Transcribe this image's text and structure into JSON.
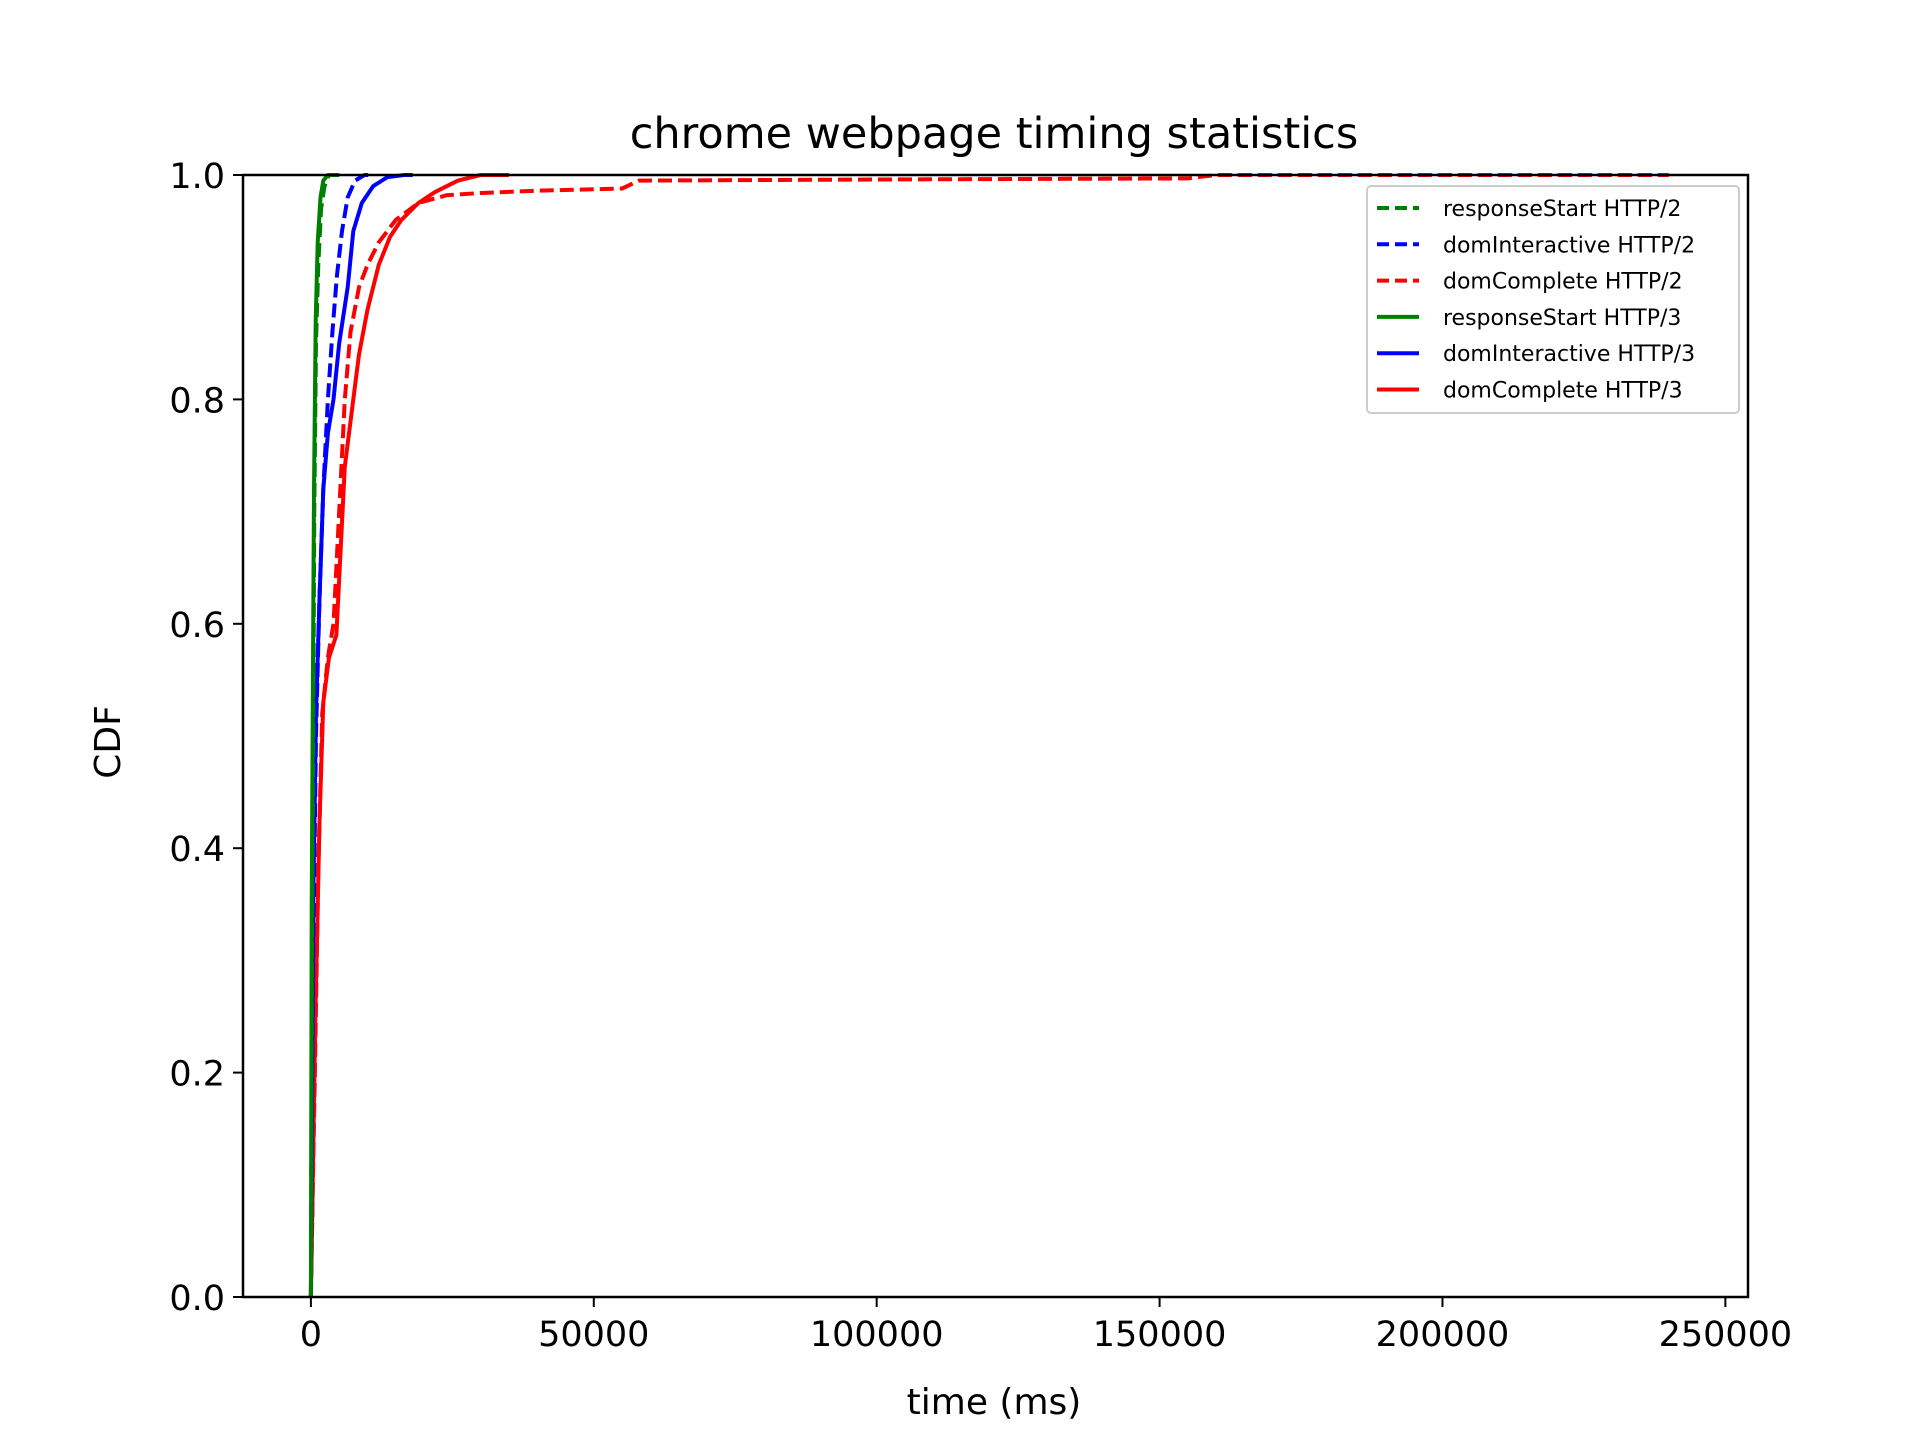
{
  "chart_data": {
    "type": "line",
    "title": "chrome webpage timing statistics",
    "xlabel": "time (ms)",
    "ylabel": "CDF",
    "xlim": [
      -12000,
      254000
    ],
    "ylim": [
      0.0,
      1.0
    ],
    "xticks": [
      0,
      50000,
      100000,
      150000,
      200000,
      250000
    ],
    "xtick_labels": [
      "0",
      "50000",
      "100000",
      "150000",
      "200000",
      "250000"
    ],
    "yticks": [
      0.0,
      0.2,
      0.4,
      0.6,
      0.8,
      1.0
    ],
    "ytick_labels": [
      "0.0",
      "0.2",
      "0.4",
      "0.6",
      "0.8",
      "1.0"
    ],
    "grid": false,
    "legend_position": "top-right",
    "series": [
      {
        "name": "responseStart HTTP/2",
        "color": "#008000",
        "dash": "dashed",
        "points": [
          [
            0,
            0
          ],
          [
            200,
            0.3
          ],
          [
            400,
            0.5
          ],
          [
            600,
            0.7
          ],
          [
            900,
            0.85
          ],
          [
            1300,
            0.92
          ],
          [
            1800,
            0.97
          ],
          [
            2400,
            0.99
          ],
          [
            3200,
            1.0
          ],
          [
            5000,
            1.0
          ]
        ]
      },
      {
        "name": "domInteractive HTTP/2",
        "color": "#0000ff",
        "dash": "dashed",
        "points": [
          [
            0,
            0
          ],
          [
            400,
            0.3
          ],
          [
            900,
            0.5
          ],
          [
            1500,
            0.62
          ],
          [
            2200,
            0.72
          ],
          [
            3000,
            0.8
          ],
          [
            3800,
            0.86
          ],
          [
            4600,
            0.91
          ],
          [
            5500,
            0.95
          ],
          [
            6500,
            0.98
          ],
          [
            7800,
            0.995
          ],
          [
            9500,
            1.0
          ],
          [
            11000,
            1.0
          ]
        ]
      },
      {
        "name": "domComplete HTTP/2",
        "color": "#ff0000",
        "dash": "dashed",
        "points": [
          [
            0,
            0
          ],
          [
            700,
            0.2
          ],
          [
            1300,
            0.38
          ],
          [
            2000,
            0.52
          ],
          [
            3000,
            0.57
          ],
          [
            4000,
            0.6
          ],
          [
            5000,
            0.7
          ],
          [
            6000,
            0.8
          ],
          [
            7000,
            0.86
          ],
          [
            8500,
            0.9
          ],
          [
            10000,
            0.92
          ],
          [
            12000,
            0.94
          ],
          [
            15000,
            0.96
          ],
          [
            19000,
            0.975
          ],
          [
            24000,
            0.982
          ],
          [
            30000,
            0.984
          ],
          [
            40000,
            0.986
          ],
          [
            55000,
            0.988
          ],
          [
            58000,
            0.995
          ],
          [
            100000,
            0.996
          ],
          [
            155000,
            0.997
          ],
          [
            160000,
            1.0
          ],
          [
            240000,
            1.0
          ]
        ]
      },
      {
        "name": "responseStart HTTP/3",
        "color": "#008000",
        "dash": "solid",
        "points": [
          [
            0,
            0
          ],
          [
            150,
            0.35
          ],
          [
            350,
            0.55
          ],
          [
            550,
            0.72
          ],
          [
            850,
            0.87
          ],
          [
            1200,
            0.94
          ],
          [
            1700,
            0.98
          ],
          [
            2200,
            0.995
          ],
          [
            3000,
            1.0
          ],
          [
            4500,
            1.0
          ]
        ]
      },
      {
        "name": "domInteractive HTTP/3",
        "color": "#0000ff",
        "dash": "solid",
        "points": [
          [
            0,
            0
          ],
          [
            400,
            0.35
          ],
          [
            900,
            0.52
          ],
          [
            1500,
            0.62
          ],
          [
            2200,
            0.72
          ],
          [
            3000,
            0.77
          ],
          [
            4000,
            0.8
          ],
          [
            5000,
            0.85
          ],
          [
            6500,
            0.9
          ],
          [
            7500,
            0.95
          ],
          [
            9000,
            0.975
          ],
          [
            11000,
            0.99
          ],
          [
            13500,
            0.998
          ],
          [
            16500,
            1.0
          ],
          [
            18000,
            1.0
          ]
        ]
      },
      {
        "name": "domComplete HTTP/3",
        "color": "#ff0000",
        "dash": "solid",
        "points": [
          [
            0,
            0
          ],
          [
            800,
            0.25
          ],
          [
            1500,
            0.42
          ],
          [
            2200,
            0.53
          ],
          [
            3200,
            0.57
          ],
          [
            4500,
            0.59
          ],
          [
            5200,
            0.66
          ],
          [
            6000,
            0.74
          ],
          [
            7500,
            0.8
          ],
          [
            8500,
            0.84
          ],
          [
            10000,
            0.88
          ],
          [
            12000,
            0.92
          ],
          [
            14000,
            0.945
          ],
          [
            16000,
            0.96
          ],
          [
            19000,
            0.975
          ],
          [
            22000,
            0.985
          ],
          [
            26000,
            0.995
          ],
          [
            30000,
            1.0
          ],
          [
            35000,
            1.0
          ]
        ]
      }
    ]
  }
}
